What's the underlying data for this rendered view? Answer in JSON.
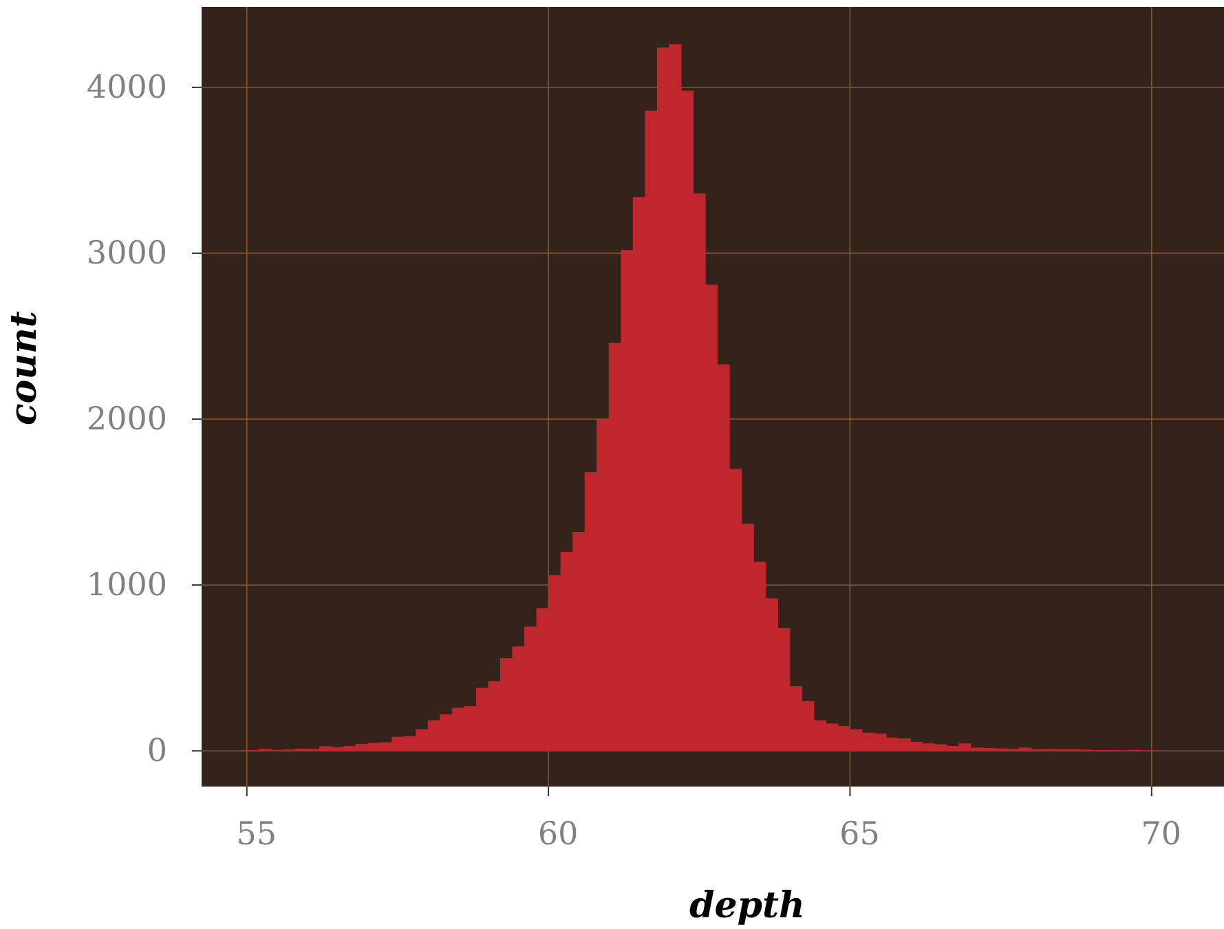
{
  "chart_data": {
    "type": "bar",
    "xlabel": "depth",
    "ylabel": "count",
    "xlim": [
      54.25,
      71.2
    ],
    "ylim": [
      -215,
      4485
    ],
    "xticks": [
      55,
      60,
      65,
      70
    ],
    "xtick_labels": [
      "55",
      "60",
      "65",
      "70"
    ],
    "yticks": [
      0,
      1000,
      2000,
      3000,
      4000
    ],
    "ytick_labels": [
      "0",
      "1000",
      "2000",
      "3000",
      "4000"
    ],
    "grid": true,
    "bin_width": 0.2,
    "bin_starts": [
      55.0,
      55.2,
      55.4,
      55.6,
      55.8,
      56.0,
      56.2,
      56.4,
      56.6,
      56.8,
      57.0,
      57.2,
      57.4,
      57.6,
      57.8,
      58.0,
      58.2,
      58.4,
      58.6,
      58.8,
      59.0,
      59.2,
      59.4,
      59.6,
      59.8,
      60.0,
      60.2,
      60.4,
      60.6,
      60.8,
      61.0,
      61.2,
      61.4,
      61.6,
      61.8,
      62.0,
      62.2,
      62.4,
      62.6,
      62.8,
      63.0,
      63.2,
      63.4,
      63.6,
      63.8,
      64.0,
      64.2,
      64.4,
      64.6,
      64.8,
      65.0,
      65.2,
      65.4,
      65.6,
      65.8,
      66.0,
      66.2,
      66.4,
      66.6,
      66.8,
      67.0,
      67.2,
      67.4,
      67.6,
      67.8,
      68.0,
      68.2,
      68.4,
      68.6,
      68.8,
      69.0,
      69.2,
      69.4,
      69.6,
      69.8
    ],
    "values": [
      5,
      12,
      6,
      8,
      14,
      12,
      28,
      22,
      30,
      42,
      48,
      52,
      85,
      90,
      130,
      185,
      220,
      260,
      270,
      380,
      420,
      560,
      630,
      750,
      860,
      1060,
      1200,
      1320,
      1680,
      2000,
      2460,
      3020,
      3340,
      3860,
      4240,
      4260,
      3980,
      3360,
      2810,
      2330,
      1700,
      1370,
      1140,
      920,
      740,
      390,
      300,
      185,
      165,
      150,
      130,
      110,
      105,
      80,
      75,
      55,
      45,
      40,
      30,
      45,
      20,
      18,
      15,
      12,
      20,
      10,
      12,
      10,
      10,
      8,
      5,
      5,
      4,
      6,
      4
    ],
    "colors": {
      "panel_background": "#33231b",
      "grid": "#8a5a32",
      "bar": "#c0272d",
      "tick_label": "#808080",
      "axis_title": "#000000"
    }
  }
}
